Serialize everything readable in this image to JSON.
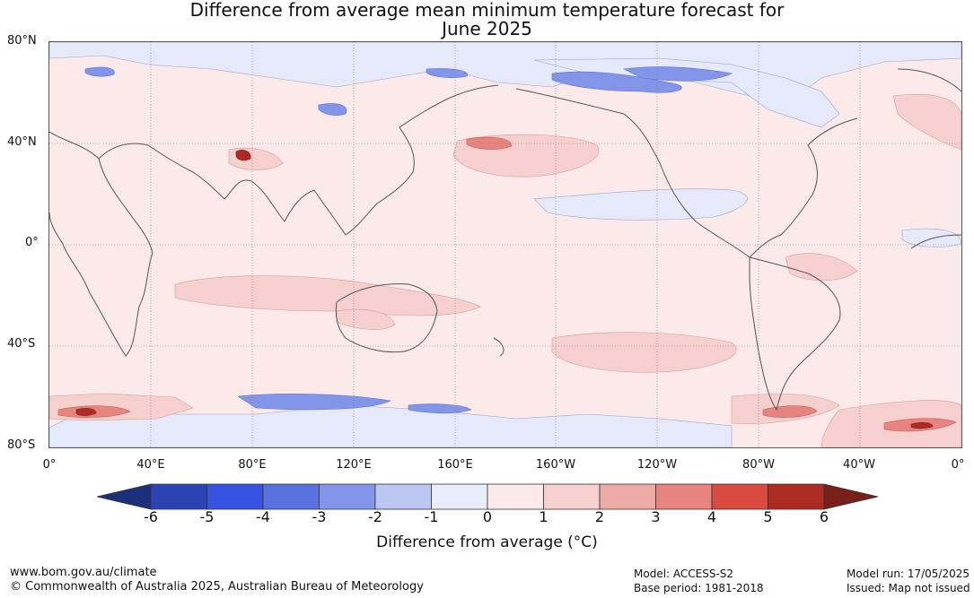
{
  "title": {
    "line1": "Difference from average mean minimum temperature forecast for",
    "line2": "June 2025"
  },
  "map": {
    "lat_labels": [
      "80°N",
      "40°N",
      "0°",
      "40°S",
      "80°S"
    ],
    "lon_labels": [
      "0°",
      "40°E",
      "80°E",
      "120°E",
      "160°E",
      "160°W",
      "120°W",
      "80°W",
      "40°W",
      "0°"
    ]
  },
  "colorbar": {
    "ticks": [
      "-6",
      "-5",
      "-4",
      "-3",
      "-2",
      "-1",
      "0",
      "1",
      "2",
      "3",
      "4",
      "5",
      "6"
    ],
    "colors": [
      "#1c2f7a",
      "#2a45b3",
      "#3552e0",
      "#5a72e0",
      "#8395e8",
      "#bcc6f2",
      "#e9edfb",
      "#fbeae9",
      "#f5d0cf",
      "#edaaa6",
      "#e8847f",
      "#d94a3f",
      "#ac2b23",
      "#7a1e1a"
    ],
    "label": "Difference from average (°C)"
  },
  "footer": {
    "website": "www.bom.gov.au/climate",
    "copyright": "© Commonwealth of Australia 2025, Australian Bureau of Meteorology",
    "model": "Model: ACCESS-S2",
    "base_period": "Base period: 1981-2018",
    "model_run": "Model run: 17/05/2025",
    "issued": "Issued: Map not issued"
  }
}
